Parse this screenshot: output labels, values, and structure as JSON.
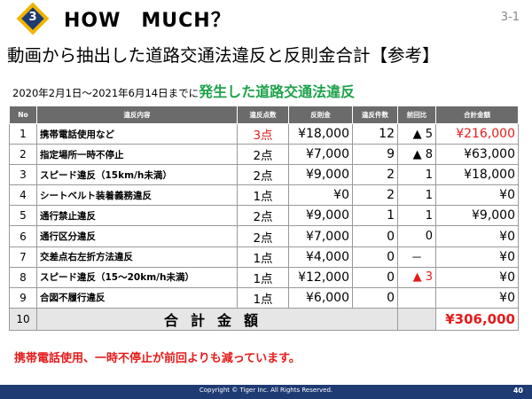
{
  "header": {
    "badge_number": "3",
    "title": "HOW　MUCH？",
    "page_ref": "3-1"
  },
  "subtitle": "動画から抽出した道路交通法違反と反則金合計【参考】",
  "period": {
    "prefix": "2020年2月1日～2021年6月14日までに",
    "highlight": "発生した道路交通法違反"
  },
  "table": {
    "columns": [
      "No",
      "違反内容",
      "違反点数",
      "反則金",
      "違反件数",
      "前回比",
      "合計金額"
    ],
    "rows": [
      {
        "no": "1",
        "name": "携帯電話使用など",
        "points": "3点",
        "fine": "¥18,000",
        "count": "12",
        "compare": "▲ 5",
        "total": "¥216,000"
      },
      {
        "no": "2",
        "name": "指定場所一時不停止",
        "points": "2点",
        "fine": "¥7,000",
        "count": "9",
        "compare": "▲ 8",
        "total": "¥63,000"
      },
      {
        "no": "3",
        "name": "スピード違反（15km/h未満）",
        "points": "2点",
        "fine": "¥9,000",
        "count": "2",
        "compare": "1",
        "total": "¥18,000"
      },
      {
        "no": "4",
        "name": "シートベルト装着義務違反",
        "points": "1点",
        "fine": "¥0",
        "count": "2",
        "compare": "1",
        "total": "¥0"
      },
      {
        "no": "5",
        "name": "通行禁止違反",
        "points": "2点",
        "fine": "¥9,000",
        "count": "1",
        "compare": "1",
        "total": "¥9,000"
      },
      {
        "no": "6",
        "name": "通行区分違反",
        "points": "2点",
        "fine": "¥7,000",
        "count": "0",
        "compare": "0",
        "total": "¥0"
      },
      {
        "no": "7",
        "name": "交差点右左折方法違反",
        "points": "1点",
        "fine": "¥4,000",
        "count": "0",
        "compare": "－",
        "total": "¥0"
      },
      {
        "no": "8",
        "name": "スピード違反（15～20km/h未満）",
        "points": "1点",
        "fine": "¥12,000",
        "count": "0",
        "compare": "▲ 3",
        "total": "¥0"
      },
      {
        "no": "9",
        "name": "合図不履行違反",
        "points": "1点",
        "fine": "¥6,000",
        "count": "0",
        "compare": "",
        "total": "¥0"
      }
    ],
    "total_row": {
      "no": "10",
      "label": "合計金額",
      "sum": "¥306,000"
    }
  },
  "note": "携帯電話使用、一時不停止が前回よりも減っています。",
  "footer": {
    "copyright": "Copyright © Tiger Inc. All Rights Reserved.",
    "page_number": "40"
  },
  "colors": {
    "navy": "#1f3b73",
    "gold": "#f0b400",
    "red": "#e51b1b",
    "green": "#1ea24a",
    "header_gray": "#6b6b6b"
  }
}
